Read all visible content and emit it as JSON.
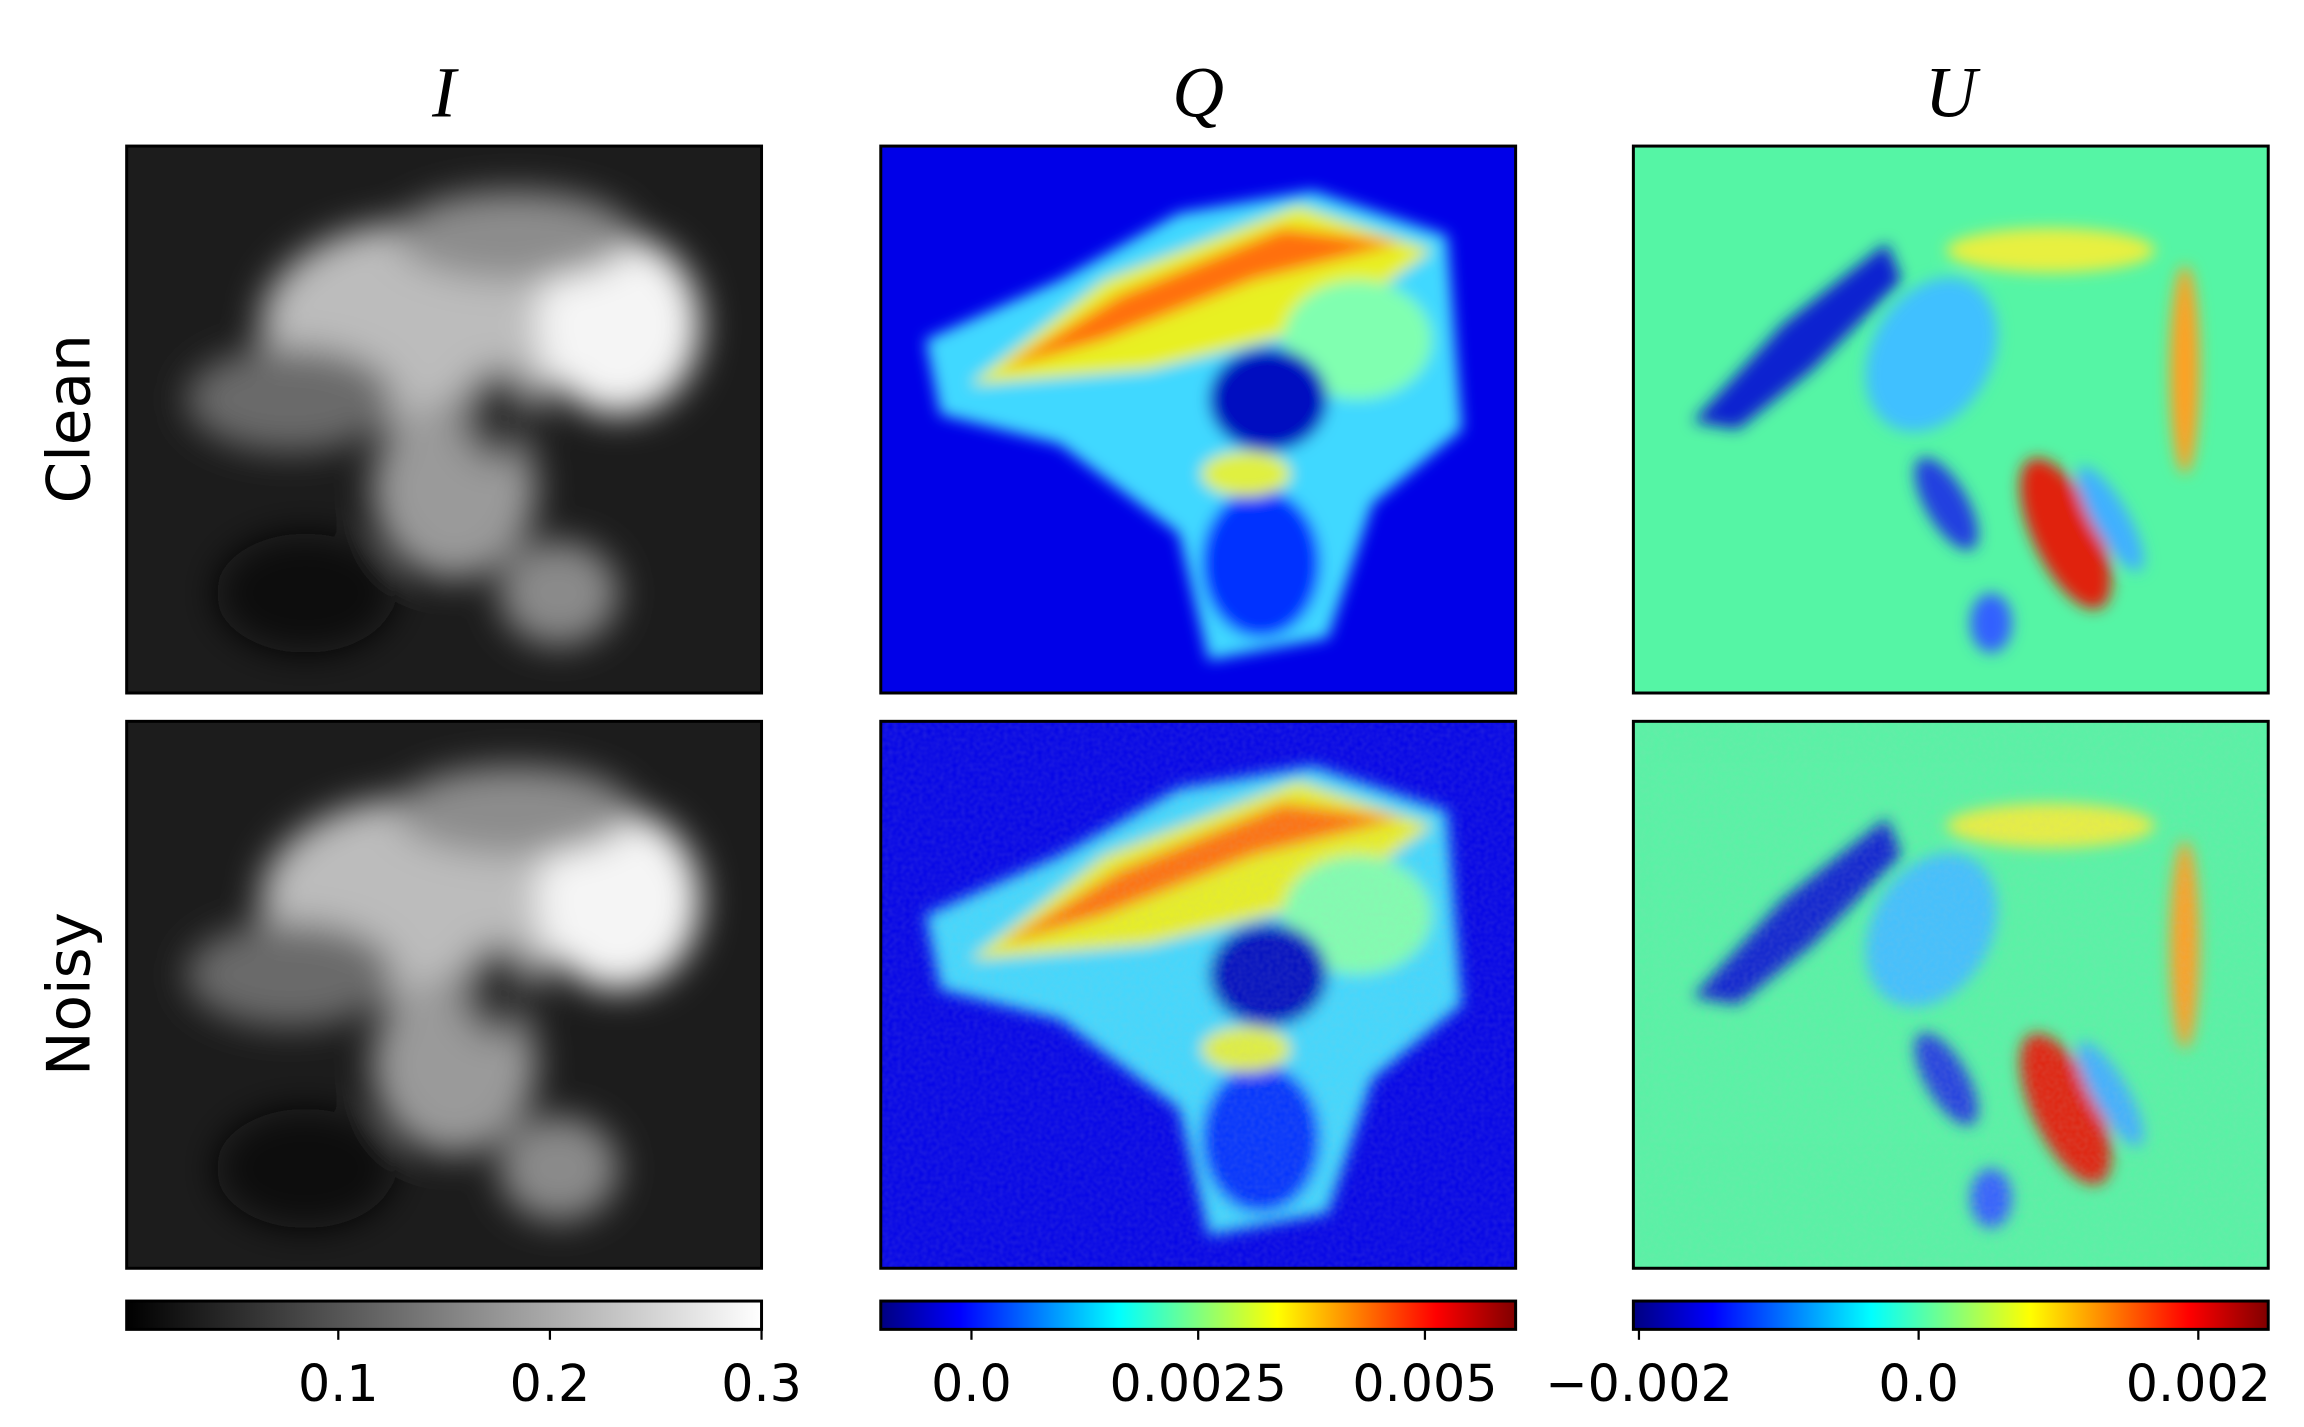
{
  "chart_data": [
    {
      "type": "heatmap",
      "title": "I",
      "colormap": "gray",
      "xlim": [
        0,
        0.3
      ],
      "xticks": [
        0.1,
        0.2,
        0.3
      ]
    },
    {
      "type": "heatmap",
      "title": "Q",
      "colormap": "jet",
      "xlim": [
        -0.001,
        0.006
      ],
      "xticks": [
        {
          "value": 0,
          "label": "0.0"
        },
        0.0025,
        0.005
      ]
    },
    {
      "type": "heatmap",
      "title": "U",
      "colormap": "jet",
      "xlim": [
        -0.00204,
        0.0025
      ],
      "xticks": [
        {
          "value": -0.002,
          "label": "−0.002"
        },
        {
          "value": 0,
          "label": "0.0"
        },
        0.002
      ]
    }
  ],
  "row_labels": [
    "Clean",
    "Noisy"
  ]
}
